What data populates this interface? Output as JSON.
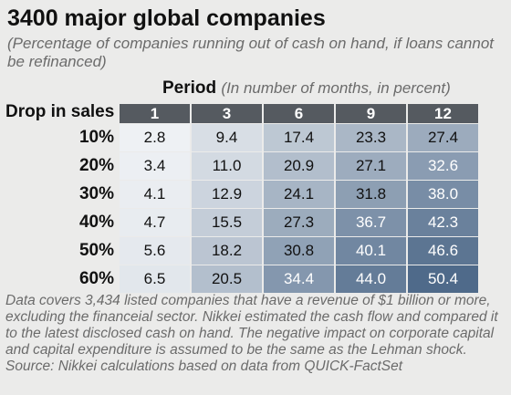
{
  "chart_data": {
    "type": "table",
    "title": "3400 major global companies",
    "subtitle": "(Percentage of companies running out of cash on hand, if loans cannot be refinanced)",
    "column_header_label": "Period",
    "column_header_note": "(In number of months, in percent)",
    "row_header_label": "Drop in sales",
    "columns": [
      "1",
      "3",
      "6",
      "9",
      "12"
    ],
    "rows": [
      {
        "label": "10%",
        "values": [
          "2.8",
          "9.4",
          "17.4",
          "23.3",
          "27.4"
        ]
      },
      {
        "label": "20%",
        "values": [
          "3.4",
          "11.0",
          "20.9",
          "27.1",
          "32.6"
        ]
      },
      {
        "label": "30%",
        "values": [
          "4.1",
          "12.9",
          "24.1",
          "31.8",
          "38.0"
        ]
      },
      {
        "label": "40%",
        "values": [
          "4.7",
          "15.5",
          "27.3",
          "36.7",
          "42.3"
        ]
      },
      {
        "label": "50%",
        "values": [
          "5.6",
          "18.2",
          "30.8",
          "40.1",
          "46.6"
        ]
      },
      {
        "label": "60%",
        "values": [
          "6.5",
          "20.5",
          "34.4",
          "44.0",
          "50.4"
        ]
      }
    ],
    "color_scale": {
      "low": "#eef1f4",
      "high": "#4f6a8a"
    }
  },
  "footnote": "Data covers 3,434 listed companies that have a revenue of $1 billion or more, excluding the financeial sector. Nikkei estimated the cash flow and compared it to the latest disclosed cash on hand. The negative impact on corporate capital and capital expenditure is assumed to be the same as the Lehman shock.",
  "source": "Source: Nikkei calculations based on data from QUICK-FactSet"
}
